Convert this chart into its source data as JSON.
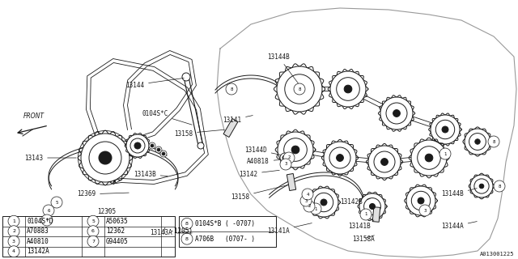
{
  "bg_color": "#ffffff",
  "dark": "#1a1a1a",
  "diagram_code": "A013001225",
  "legend": {
    "left_rows": [
      [
        "1",
        "0104S*D",
        "5",
        "A50635"
      ],
      [
        "2",
        "A70883",
        "6",
        "12362"
      ],
      [
        "3",
        "A40810",
        "7",
        "G94405"
      ],
      [
        "4",
        "13142A",
        "",
        ""
      ]
    ],
    "note": "( -1205)",
    "right_lines": [
      "0104S*B ( -0707)",
      "A706B   (0707- )"
    ],
    "right_num": "8"
  }
}
